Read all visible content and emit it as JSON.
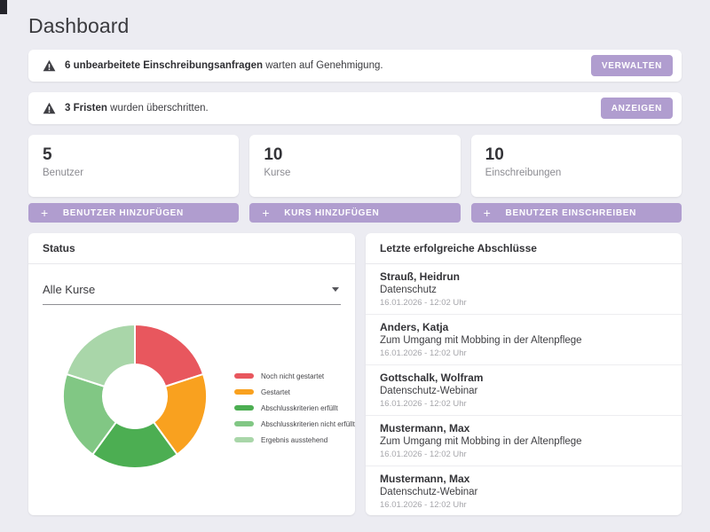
{
  "page": {
    "title": "Dashboard",
    "background_color": "#ececf2",
    "accent_color": "#b09dcf"
  },
  "icons": {
    "warning": "triangle-exclamation",
    "plus": "+",
    "caret": "chevron-down"
  },
  "alerts": [
    {
      "bold_text": "6 unbearbeitete Einschreibungsanfragen",
      "text": " warten auf Genehmigung.",
      "button_label": "VERWALTEN"
    },
    {
      "bold_text": "3 Fristen",
      "text": " wurden überschritten.",
      "button_label": "ANZEIGEN"
    }
  ],
  "stats": {
    "items": [
      {
        "value": "5",
        "label": "Benutzer",
        "action_label": "BENUTZER HINZUFÜGEN"
      },
      {
        "value": "10",
        "label": "Kurse",
        "action_label": "KURS HINZUFÜGEN"
      },
      {
        "value": "10",
        "label": "Einschreibungen",
        "action_label": "BENUTZER EINSCHREIBEN"
      }
    ]
  },
  "status_card": {
    "title": "Status",
    "course_filter_value": "Alle Kurse"
  },
  "chart_data": {
    "type": "pie",
    "donut": true,
    "title": "Status",
    "categories": [
      "Noch nicht gestartet",
      "Gestartet",
      "Abschlusskriterien erfüllt",
      "Abschlusskriterien nicht erfüllt",
      "Ergebnis ausstehend"
    ],
    "values": [
      2,
      2,
      2,
      2,
      2
    ],
    "percentages": [
      20,
      20,
      20,
      20,
      20
    ],
    "colors": [
      "#e8575e",
      "#f9a11f",
      "#4cae52",
      "#81c784",
      "#a9d6a9"
    ],
    "start_angle_deg": 0,
    "direction": "clockwise",
    "legend_position": "right",
    "inner_radius_ratio": 0.45
  },
  "completions_card": {
    "title": "Letzte erfolgreiche Abschlüsse",
    "items": [
      {
        "name": "Strauß, Heidrun",
        "course": "Datenschutz",
        "datetime": "16.01.2026 - 12:02 Uhr"
      },
      {
        "name": "Anders, Katja",
        "course": "Zum Umgang mit Mobbing in der Altenpflege",
        "datetime": "16.01.2026 - 12:02 Uhr"
      },
      {
        "name": "Gottschalk, Wolfram",
        "course": "Datenschutz-Webinar",
        "datetime": "16.01.2026 - 12:02 Uhr"
      },
      {
        "name": "Mustermann, Max",
        "course": "Zum Umgang mit Mobbing in der Altenpflege",
        "datetime": "16.01.2026 - 12:02 Uhr"
      },
      {
        "name": "Mustermann, Max",
        "course": "Datenschutz-Webinar",
        "datetime": "16.01.2026 - 12:02 Uhr"
      }
    ]
  }
}
